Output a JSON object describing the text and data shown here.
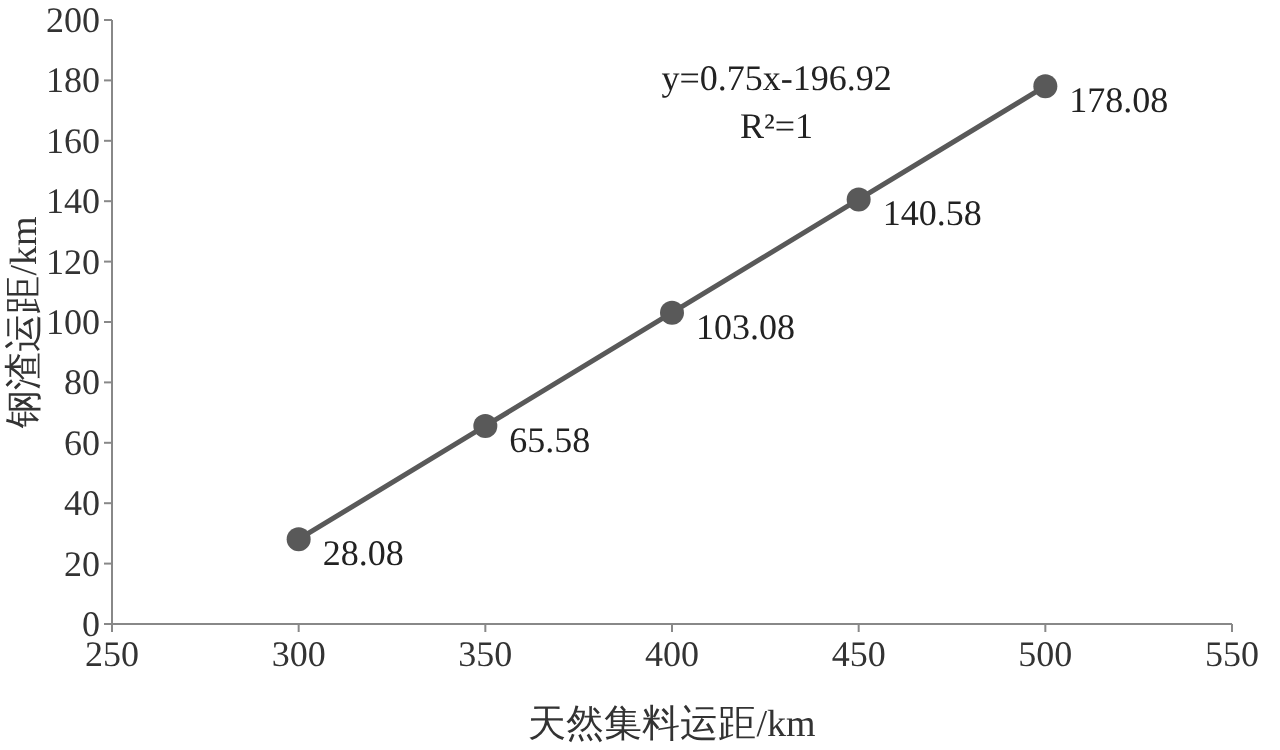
{
  "chart_data": {
    "type": "line",
    "xlabel": "天然集料运距/km",
    "ylabel": "钢渣运距/km",
    "x": [
      300,
      350,
      400,
      450,
      500
    ],
    "series": [
      {
        "color": "#595959",
        "values": [
          28.08,
          65.58,
          103.08,
          140.58,
          178.08
        ]
      }
    ],
    "marker": "circle",
    "line_style": "solid",
    "data_labels": true,
    "xlim": [
      250,
      550
    ],
    "xticks": [
      250,
      300,
      350,
      400,
      450,
      500,
      550
    ],
    "ylim": [
      0,
      200
    ],
    "yticks": [
      0,
      20,
      40,
      60,
      80,
      100,
      120,
      140,
      160,
      180,
      200
    ],
    "annotations": [
      "y=0.75x-196.92",
      "R²=1"
    ]
  }
}
